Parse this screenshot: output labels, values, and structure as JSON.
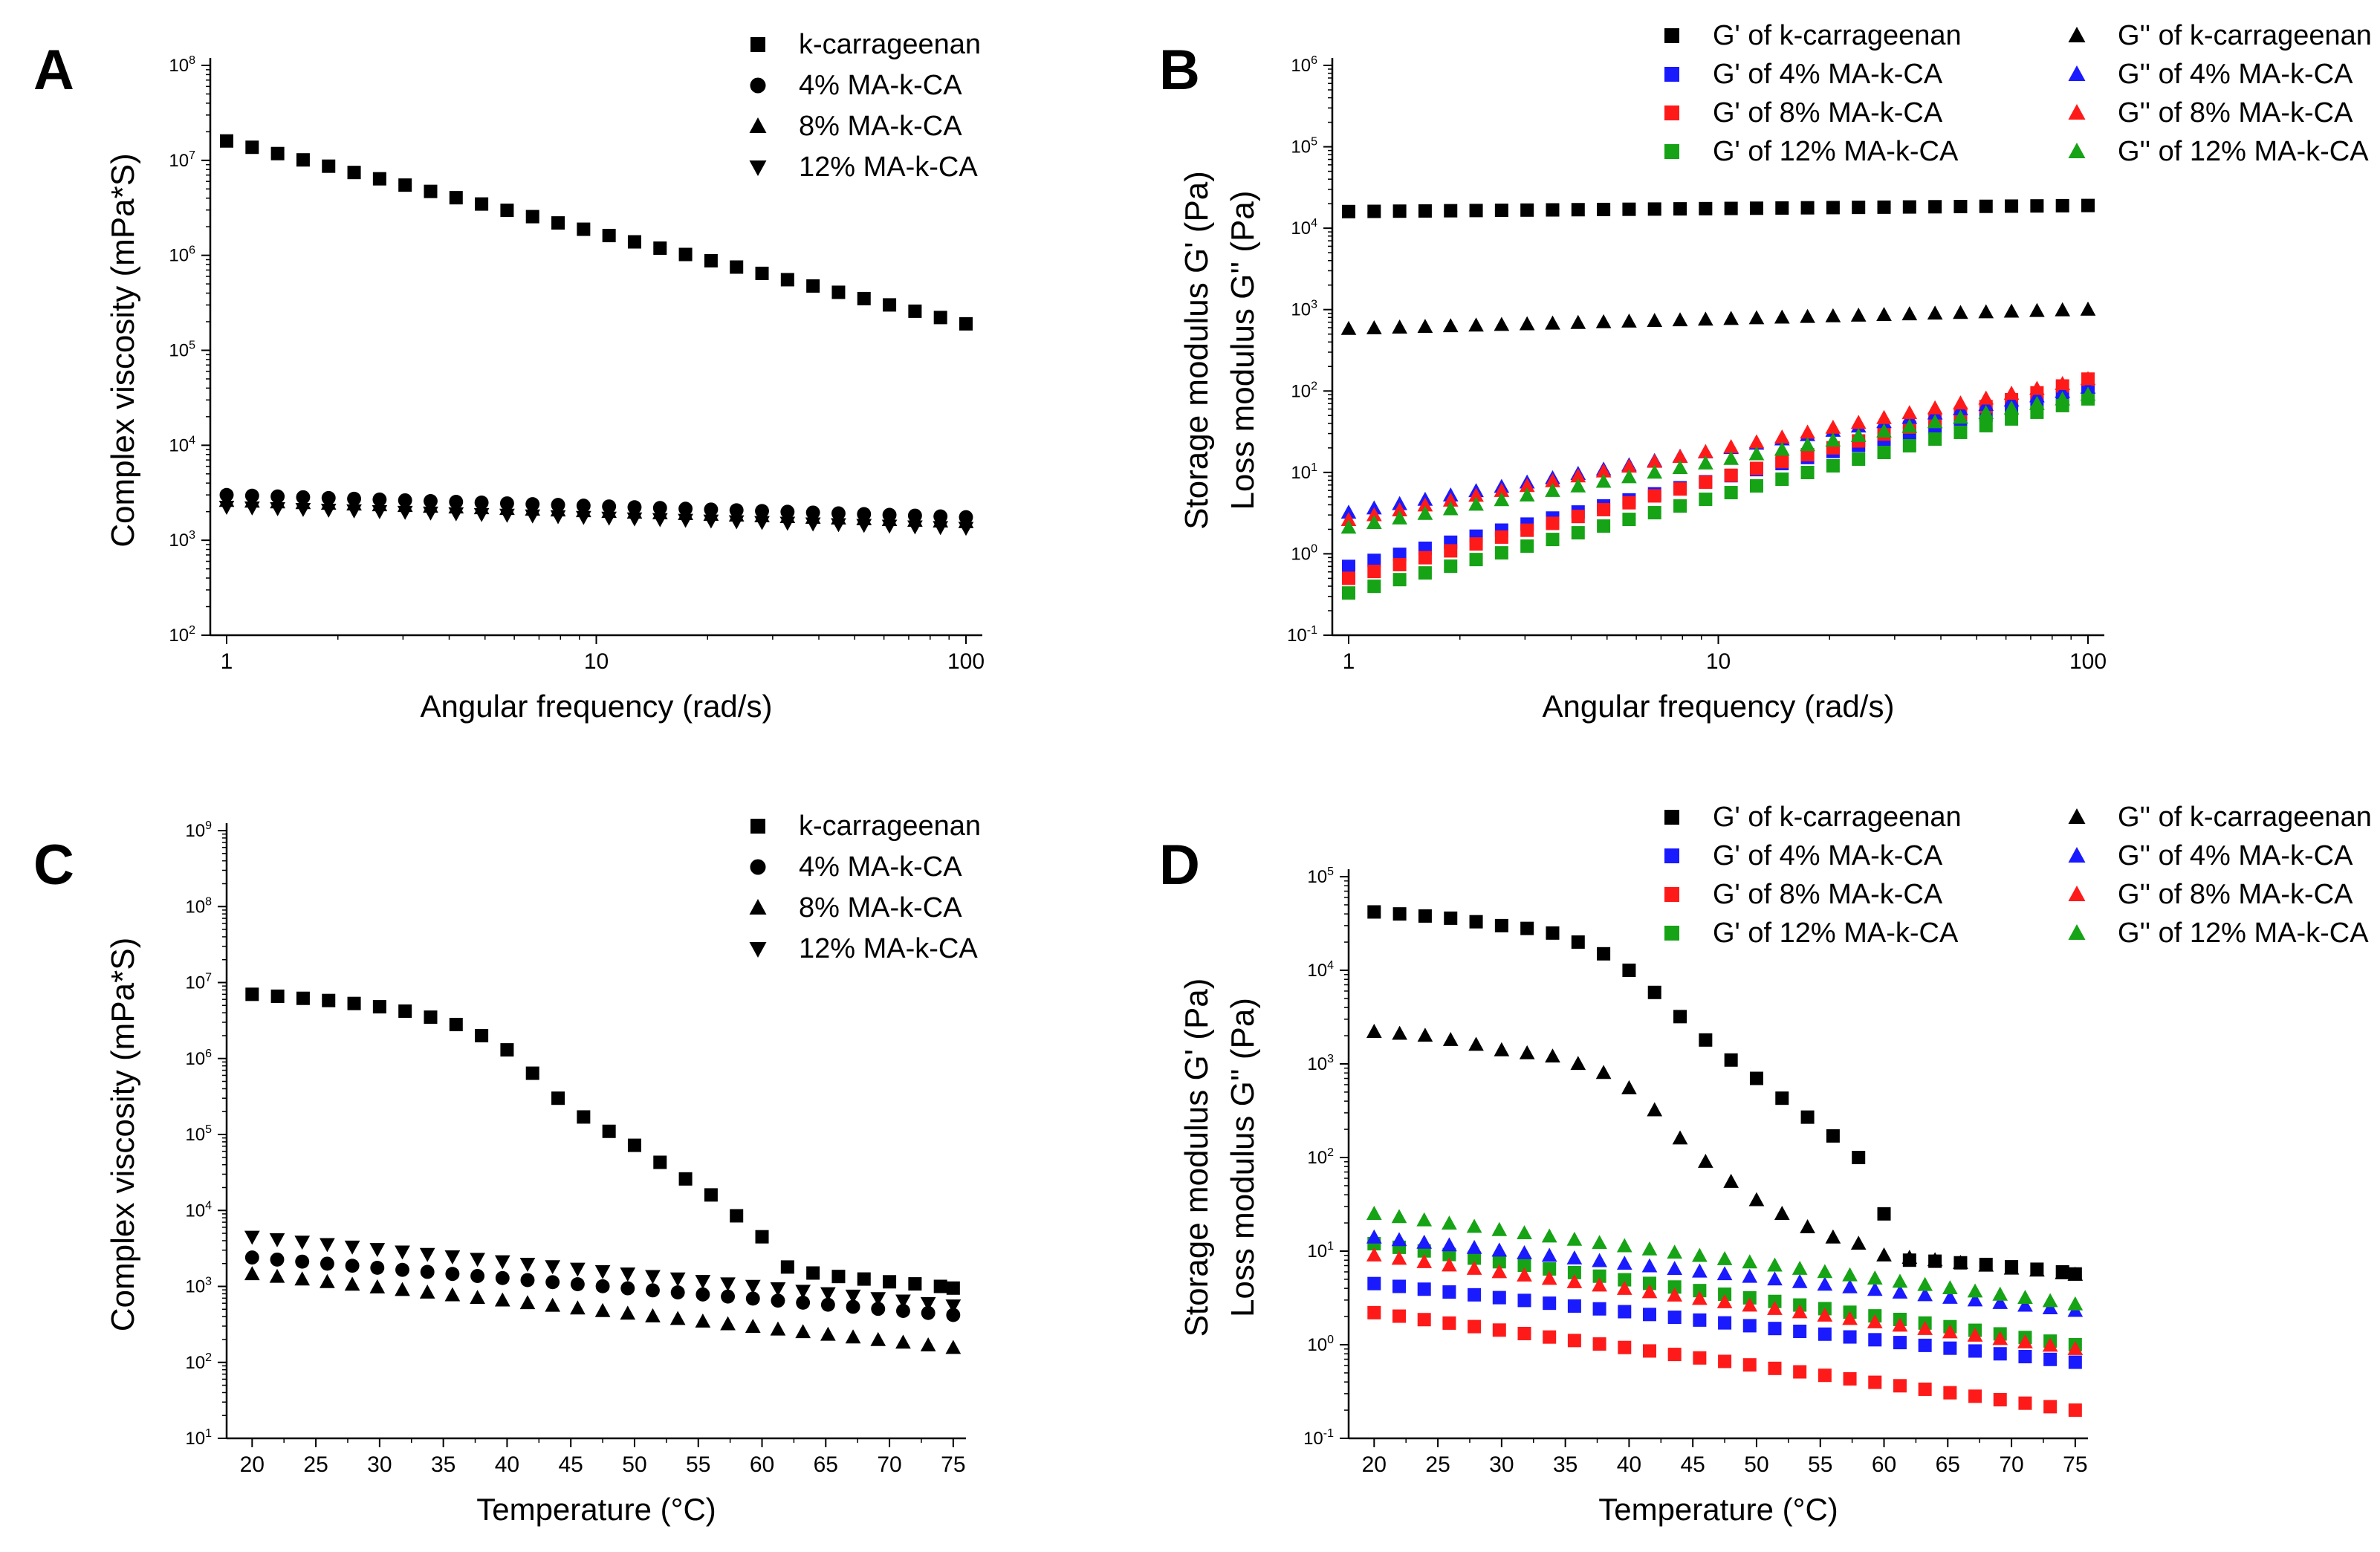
{
  "figure_caption": "",
  "colors": {
    "black": "#000000",
    "blue": "#1a1aff",
    "red": "#ff1a1a",
    "green": "#16a316"
  },
  "chart_data": [
    {
      "panel": "A",
      "type": "scatter",
      "xscale": "log",
      "yscale": "log",
      "xlim": [
        1,
        100
      ],
      "ylim": [
        100,
        100000000
      ],
      "xticks": [
        1,
        10,
        100
      ],
      "xtick_labels": [
        "1",
        "10",
        "100"
      ],
      "yticks": [
        100,
        1000,
        10000,
        100000,
        1000000,
        10000000,
        100000000
      ],
      "ytick_labels": [
        [
          "10",
          "2"
        ],
        [
          "10",
          "3"
        ],
        [
          "10",
          "4"
        ],
        [
          "10",
          "5"
        ],
        [
          "10",
          "6"
        ],
        [
          "10",
          "7"
        ],
        [
          "10",
          "8"
        ]
      ],
      "xlabel": "Angular frequency (rad/s)",
      "ylabel": [
        "Complex viscosity (mPa*S)"
      ],
      "legend": {
        "position": "top-right",
        "columns": 1
      },
      "series": [
        {
          "name": "k-carrageenan",
          "marker": "square",
          "color": "#000000",
          "legend_col": 0,
          "legend_row": 0,
          "gen": {
            "kind": "logline",
            "x_start": 1,
            "x_end": 100,
            "n": 30,
            "y_start": 16000000,
            "y_end": 190000
          }
        },
        {
          "name": "4% MA-k-CA",
          "marker": "circle",
          "color": "#000000",
          "legend_col": 0,
          "legend_row": 1,
          "gen": {
            "kind": "logline",
            "x_start": 1,
            "x_end": 100,
            "n": 30,
            "y_start": 3000,
            "y_end": 1750
          }
        },
        {
          "name": "8% MA-k-CA",
          "marker": "triangle-up",
          "color": "#000000",
          "legend_col": 0,
          "legend_row": 2,
          "gen": {
            "kind": "logline",
            "x_start": 1,
            "x_end": 100,
            "n": 30,
            "y_start": 2600,
            "y_end": 1550
          }
        },
        {
          "name": "12% MA-k-CA",
          "marker": "triangle-down",
          "color": "#000000",
          "legend_col": 0,
          "legend_row": 3,
          "gen": {
            "kind": "logline",
            "x_start": 1,
            "x_end": 100,
            "n": 30,
            "y_start": 2250,
            "y_end": 1350
          }
        }
      ]
    },
    {
      "panel": "B",
      "type": "scatter",
      "xscale": "log",
      "yscale": "log",
      "xlim": [
        1,
        100
      ],
      "ylim": [
        0.1,
        1000000
      ],
      "xticks": [
        1,
        10,
        100
      ],
      "xtick_labels": [
        "1",
        "10",
        "100"
      ],
      "yticks": [
        0.1,
        1,
        10,
        100,
        1000,
        10000,
        100000,
        1000000
      ],
      "ytick_labels": [
        [
          "10",
          "-1"
        ],
        [
          "10",
          "0"
        ],
        [
          "10",
          "1"
        ],
        [
          "10",
          "2"
        ],
        [
          "10",
          "3"
        ],
        [
          "10",
          "4"
        ],
        [
          "10",
          "5"
        ],
        [
          "10",
          "6"
        ]
      ],
      "xlabel": "Angular frequency (rad/s)",
      "ylabel": [
        "Storage modulus G' (Pa)",
        "Loss modulus G'' (Pa)"
      ],
      "legend": {
        "position": "top-right",
        "columns": 2
      },
      "series": [
        {
          "name": "G' of k-carrageenan",
          "marker": "square",
          "color": "#000000",
          "legend_col": 0,
          "legend_row": 0,
          "gen": {
            "kind": "logline",
            "x_start": 1,
            "x_end": 100,
            "n": 30,
            "y_start": 16000,
            "y_end": 19000
          }
        },
        {
          "name": "G' of 4% MA-k-CA",
          "marker": "square",
          "color": "#1a1aff",
          "legend_col": 0,
          "legend_row": 1,
          "gen": {
            "kind": "logline",
            "x_start": 1,
            "x_end": 100,
            "n": 30,
            "y_start": 0.7,
            "y_end": 100
          }
        },
        {
          "name": "G' of 8% MA-k-CA",
          "marker": "square",
          "color": "#ff1a1a",
          "legend_col": 0,
          "legend_row": 2,
          "gen": {
            "kind": "logline",
            "x_start": 1,
            "x_end": 100,
            "n": 30,
            "y_start": 0.5,
            "y_end": 140
          }
        },
        {
          "name": "G' of 12% MA-k-CA",
          "marker": "square",
          "color": "#16a316",
          "legend_col": 0,
          "legend_row": 3,
          "gen": {
            "kind": "logline",
            "x_start": 1,
            "x_end": 100,
            "n": 30,
            "y_start": 0.33,
            "y_end": 80
          }
        },
        {
          "name": "G'' of k-carrageenan",
          "marker": "triangle-up",
          "color": "#000000",
          "legend_col": 1,
          "legend_row": 0,
          "gen": {
            "kind": "logline",
            "x_start": 1,
            "x_end": 100,
            "n": 30,
            "y_start": 580,
            "y_end": 1000
          }
        },
        {
          "name": "G'' of 4% MA-k-CA",
          "marker": "triangle-up",
          "color": "#1a1aff",
          "legend_col": 1,
          "legend_row": 1,
          "gen": {
            "kind": "logline",
            "x_start": 1,
            "x_end": 100,
            "n": 30,
            "y_start": 3.2,
            "y_end": 110
          }
        },
        {
          "name": "G'' of 8% MA-k-CA",
          "marker": "triangle-up",
          "color": "#ff1a1a",
          "legend_col": 1,
          "legend_row": 2,
          "gen": {
            "kind": "logline",
            "x_start": 1,
            "x_end": 100,
            "n": 30,
            "y_start": 2.6,
            "y_end": 140
          }
        },
        {
          "name": "G'' of 12% MA-k-CA",
          "marker": "triangle-up",
          "color": "#16a316",
          "legend_col": 1,
          "legend_row": 3,
          "gen": {
            "kind": "logline",
            "x_start": 1,
            "x_end": 100,
            "n": 30,
            "y_start": 2.1,
            "y_end": 90
          }
        }
      ]
    },
    {
      "panel": "C",
      "type": "scatter",
      "xscale": "linear",
      "yscale": "log",
      "xlim": [
        18,
        76
      ],
      "ylim": [
        10,
        1000000000
      ],
      "xticks": [
        20,
        25,
        30,
        35,
        40,
        45,
        50,
        55,
        60,
        65,
        70,
        75
      ],
      "xtick_labels": [
        "20",
        "25",
        "30",
        "35",
        "40",
        "45",
        "50",
        "55",
        "60",
        "65",
        "70",
        "75"
      ],
      "yticks": [
        10,
        100,
        1000,
        10000,
        100000,
        1000000,
        10000000,
        100000000,
        1000000000
      ],
      "ytick_labels": [
        [
          "10",
          "1"
        ],
        [
          "10",
          "2"
        ],
        [
          "10",
          "3"
        ],
        [
          "10",
          "4"
        ],
        [
          "10",
          "5"
        ],
        [
          "10",
          "6"
        ],
        [
          "10",
          "7"
        ],
        [
          "10",
          "8"
        ],
        [
          "10",
          "9"
        ]
      ],
      "xlabel": "Temperature (°C)",
      "ylabel": [
        "Complex viscosity (mPa*S)"
      ],
      "legend": {
        "position": "top-right",
        "columns": 1
      },
      "series": [
        {
          "name": "k-carrageenan",
          "marker": "square",
          "color": "#000000",
          "legend_col": 0,
          "legend_row": 0,
          "x": [
            20,
            22,
            24,
            26,
            28,
            30,
            32,
            34,
            36,
            38,
            40,
            42,
            44,
            46,
            48,
            50,
            52,
            54,
            56,
            58,
            60,
            62,
            64,
            66,
            68,
            70,
            72,
            74,
            75
          ],
          "y": [
            7000000,
            6600000,
            6200000,
            5800000,
            5300000,
            4800000,
            4200000,
            3500000,
            2800000,
            2000000,
            1300000,
            640000,
            300000,
            170000,
            110000,
            72000,
            43000,
            26000,
            16000,
            8500,
            4500,
            1800,
            1500,
            1350,
            1250,
            1150,
            1080,
            1000,
            950
          ]
        },
        {
          "name": "4% MA-k-CA",
          "marker": "circle",
          "color": "#000000",
          "legend_col": 0,
          "legend_row": 1,
          "gen": {
            "kind": "logline",
            "x_start": 20,
            "x_end": 75,
            "n": 29,
            "y_start": 2400,
            "y_end": 420
          }
        },
        {
          "name": "8% MA-k-CA",
          "marker": "triangle-up",
          "color": "#000000",
          "legend_col": 0,
          "legend_row": 2,
          "gen": {
            "kind": "logline",
            "x_start": 20,
            "x_end": 75,
            "n": 29,
            "y_start": 1450,
            "y_end": 155
          }
        },
        {
          "name": "12% MA-k-CA",
          "marker": "triangle-down",
          "color": "#000000",
          "legend_col": 0,
          "legend_row": 3,
          "gen": {
            "kind": "logline",
            "x_start": 20,
            "x_end": 75,
            "n": 29,
            "y_start": 4500,
            "y_end": 560
          }
        }
      ]
    },
    {
      "panel": "D",
      "type": "scatter",
      "xscale": "linear",
      "yscale": "log",
      "xlim": [
        18,
        76
      ],
      "ylim": [
        0.1,
        100000
      ],
      "xticks": [
        20,
        25,
        30,
        35,
        40,
        45,
        50,
        55,
        60,
        65,
        70,
        75
      ],
      "xtick_labels": [
        "20",
        "25",
        "30",
        "35",
        "40",
        "45",
        "50",
        "55",
        "60",
        "65",
        "70",
        "75"
      ],
      "yticks": [
        0.1,
        1,
        10,
        100,
        1000,
        10000,
        100000
      ],
      "ytick_labels": [
        [
          "10",
          "-1"
        ],
        [
          "10",
          "0"
        ],
        [
          "10",
          "1"
        ],
        [
          "10",
          "2"
        ],
        [
          "10",
          "3"
        ],
        [
          "10",
          "4"
        ],
        [
          "10",
          "5"
        ]
      ],
      "xlabel": "Temperature (°C)",
      "ylabel": [
        "Storage modulus G' (Pa)",
        "Loss modulus G'' (Pa)"
      ],
      "legend": {
        "position": "top-right",
        "columns": 2
      },
      "series": [
        {
          "name": "G' of k-carrageenan",
          "marker": "square",
          "color": "#000000",
          "legend_col": 0,
          "legend_row": 0,
          "x": [
            20,
            22,
            24,
            26,
            28,
            30,
            32,
            34,
            36,
            38,
            40,
            42,
            44,
            46,
            48,
            50,
            52,
            54,
            56,
            58,
            60,
            62,
            64,
            66,
            68,
            70,
            72,
            74,
            75
          ],
          "y": [
            42000,
            40000,
            38000,
            36000,
            33000,
            30000,
            28000,
            25000,
            20000,
            15000,
            10000,
            5800,
            3200,
            1800,
            1100,
            700,
            430,
            270,
            170,
            100,
            25,
            8,
            7.8,
            7.5,
            7.2,
            6.8,
            6.4,
            6,
            5.7
          ]
        },
        {
          "name": "G' of 4% MA-k-CA",
          "marker": "square",
          "color": "#1a1aff",
          "legend_col": 0,
          "legend_row": 1,
          "gen": {
            "kind": "logline",
            "x_start": 20,
            "x_end": 75,
            "n": 29,
            "y_start": 4.5,
            "y_end": 0.65
          }
        },
        {
          "name": "G' of 8% MA-k-CA",
          "marker": "square",
          "color": "#ff1a1a",
          "legend_col": 0,
          "legend_row": 2,
          "gen": {
            "kind": "logline",
            "x_start": 20,
            "x_end": 75,
            "n": 29,
            "y_start": 2.2,
            "y_end": 0.2
          }
        },
        {
          "name": "G' of 12% MA-k-CA",
          "marker": "square",
          "color": "#16a316",
          "legend_col": 0,
          "legend_row": 3,
          "gen": {
            "kind": "logline",
            "x_start": 20,
            "x_end": 75,
            "n": 29,
            "y_start": 12,
            "y_end": 1.0
          }
        },
        {
          "name": "G'' of k-carrageenan",
          "marker": "triangle-up",
          "color": "#000000",
          "legend_col": 1,
          "legend_row": 0,
          "x": [
            20,
            22,
            24,
            26,
            28,
            30,
            32,
            34,
            36,
            38,
            40,
            42,
            44,
            46,
            48,
            50,
            52,
            54,
            56,
            58,
            60,
            62,
            64,
            66,
            68,
            70,
            72,
            74,
            75
          ],
          "y": [
            2200,
            2100,
            2000,
            1800,
            1600,
            1400,
            1300,
            1200,
            1000,
            800,
            550,
            320,
            160,
            90,
            55,
            35,
            25,
            18,
            14,
            12,
            9,
            8.5,
            8,
            7.5,
            7,
            6.5,
            6.2,
            5.8,
            5.6
          ]
        },
        {
          "name": "G'' of 4% MA-k-CA",
          "marker": "triangle-up",
          "color": "#1a1aff",
          "legend_col": 1,
          "legend_row": 1,
          "gen": {
            "kind": "logline",
            "x_start": 20,
            "x_end": 75,
            "n": 29,
            "y_start": 14,
            "y_end": 2.3
          }
        },
        {
          "name": "G'' of 8% MA-k-CA",
          "marker": "triangle-up",
          "color": "#ff1a1a",
          "legend_col": 1,
          "legend_row": 2,
          "gen": {
            "kind": "logline",
            "x_start": 20,
            "x_end": 75,
            "n": 29,
            "y_start": 9,
            "y_end": 0.9
          }
        },
        {
          "name": "G'' of 12% MA-k-CA",
          "marker": "triangle-up",
          "color": "#16a316",
          "legend_col": 1,
          "legend_row": 3,
          "gen": {
            "kind": "logline",
            "x_start": 20,
            "x_end": 75,
            "n": 29,
            "y_start": 25,
            "y_end": 2.7
          }
        }
      ]
    }
  ]
}
